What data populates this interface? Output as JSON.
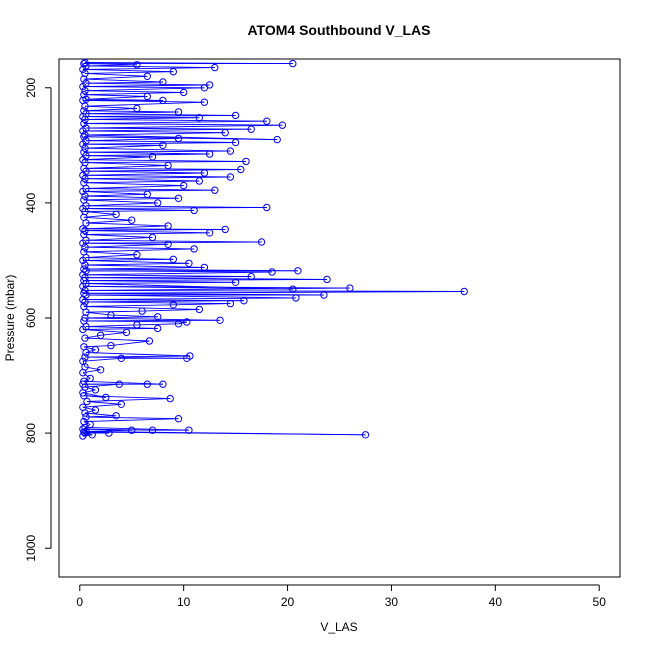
{
  "chart_data": {
    "type": "line",
    "title": "ATOM4 Southbound V_LAS",
    "xlabel": "V_LAS",
    "ylabel": "Pressure (mbar)",
    "xlim": [
      -2,
      52
    ],
    "ylim": [
      1050,
      150
    ],
    "y_reversed": true,
    "xticks": [
      0,
      10,
      20,
      30,
      40,
      50
    ],
    "yticks": [
      200,
      400,
      600,
      800,
      1000
    ],
    "grid": false,
    "series": [
      {
        "marker": "open-circle",
        "color": "#0000ff",
        "points": [
          [
            0.3,
            805
          ],
          [
            1.2,
            803
          ],
          [
            0.5,
            800
          ],
          [
            2.8,
            800
          ],
          [
            0.4,
            798
          ],
          [
            27.5,
            803
          ],
          [
            0.6,
            797
          ],
          [
            5.0,
            795
          ],
          [
            0.3,
            793
          ],
          [
            7.0,
            795
          ],
          [
            10.5,
            795
          ],
          [
            0.5,
            790
          ],
          [
            1.0,
            785
          ],
          [
            0.4,
            780
          ],
          [
            9.5,
            775
          ],
          [
            0.6,
            772
          ],
          [
            3.5,
            770
          ],
          [
            0.5,
            765
          ],
          [
            1.5,
            760
          ],
          [
            0.3,
            755
          ],
          [
            4.0,
            750
          ],
          [
            0.7,
            745
          ],
          [
            8.7,
            740
          ],
          [
            0.4,
            735
          ],
          [
            2.5,
            738
          ],
          [
            0.3,
            730
          ],
          [
            1.5,
            725
          ],
          [
            0.5,
            720
          ],
          [
            3.8,
            715
          ],
          [
            0.3,
            715
          ],
          [
            6.5,
            715
          ],
          [
            8.0,
            715
          ],
          [
            0.4,
            710
          ],
          [
            1.0,
            705
          ],
          [
            0.3,
            695
          ],
          [
            2.0,
            690
          ],
          [
            0.5,
            685
          ],
          [
            0.3,
            675
          ],
          [
            4.0,
            670
          ],
          [
            10.3,
            670
          ],
          [
            0.5,
            668
          ],
          [
            10.6,
            666
          ],
          [
            0.6,
            660
          ],
          [
            1.5,
            655
          ],
          [
            0.4,
            650
          ],
          [
            3.0,
            648
          ],
          [
            6.7,
            640
          ],
          [
            0.5,
            635
          ],
          [
            2.0,
            630
          ],
          [
            4.5,
            625
          ],
          [
            0.3,
            620
          ],
          [
            7.5,
            618
          ],
          [
            0.6,
            615
          ],
          [
            5.5,
            612
          ],
          [
            9.5,
            610
          ],
          [
            10.3,
            607
          ],
          [
            0.4,
            605
          ],
          [
            13.5,
            604
          ],
          [
            0.5,
            600
          ],
          [
            7.5,
            598
          ],
          [
            3.0,
            595
          ],
          [
            0.6,
            590
          ],
          [
            6.0,
            588
          ],
          [
            11.5,
            585
          ],
          [
            0.4,
            580
          ],
          [
            9.0,
            577
          ],
          [
            14.5,
            575
          ],
          [
            0.5,
            572
          ],
          [
            15.8,
            570
          ],
          [
            0.3,
            568
          ],
          [
            20.8,
            565
          ],
          [
            0.6,
            560
          ],
          [
            23.5,
            560
          ],
          [
            0.4,
            557
          ],
          [
            37.0,
            554
          ],
          [
            0.5,
            552
          ],
          [
            26.0,
            548
          ],
          [
            0.3,
            545
          ],
          [
            20.5,
            550
          ],
          [
            0.6,
            540
          ],
          [
            15.0,
            538
          ],
          [
            0.4,
            535
          ],
          [
            23.8,
            533
          ],
          [
            0.5,
            530
          ],
          [
            16.5,
            528
          ],
          [
            0.3,
            525
          ],
          [
            18.5,
            520
          ],
          [
            0.6,
            518
          ],
          [
            21.0,
            518
          ],
          [
            0.4,
            515
          ],
          [
            12.0,
            512
          ],
          [
            0.5,
            508
          ],
          [
            10.5,
            505
          ],
          [
            0.3,
            500
          ],
          [
            9.0,
            498
          ],
          [
            0.6,
            495
          ],
          [
            5.5,
            490
          ],
          [
            0.4,
            485
          ],
          [
            11.0,
            480
          ],
          [
            0.5,
            477
          ],
          [
            8.5,
            472
          ],
          [
            0.3,
            470
          ],
          [
            17.5,
            468
          ],
          [
            0.6,
            465
          ],
          [
            7.0,
            460
          ],
          [
            0.4,
            455
          ],
          [
            12.5,
            452
          ],
          [
            0.5,
            448
          ],
          [
            14.0,
            446
          ],
          [
            0.3,
            445
          ],
          [
            8.5,
            440
          ],
          [
            0.6,
            435
          ],
          [
            5.0,
            430
          ],
          [
            0.4,
            425
          ],
          [
            3.5,
            420
          ],
          [
            0.5,
            415
          ],
          [
            11.0,
            413
          ],
          [
            0.3,
            410
          ],
          [
            18.0,
            408
          ],
          [
            0.6,
            405
          ],
          [
            7.5,
            400
          ],
          [
            0.4,
            395
          ],
          [
            9.5,
            392
          ],
          [
            0.5,
            388
          ],
          [
            6.5,
            385
          ],
          [
            0.3,
            380
          ],
          [
            13.0,
            378
          ],
          [
            0.6,
            375
          ],
          [
            10.0,
            370
          ],
          [
            0.4,
            365
          ],
          [
            11.5,
            362
          ],
          [
            0.5,
            358
          ],
          [
            14.5,
            355
          ],
          [
            0.3,
            352
          ],
          [
            12.0,
            348
          ],
          [
            0.6,
            345
          ],
          [
            15.5,
            342
          ],
          [
            0.4,
            340
          ],
          [
            8.5,
            335
          ],
          [
            0.5,
            330
          ],
          [
            16.0,
            328
          ],
          [
            0.3,
            325
          ],
          [
            7.0,
            320
          ],
          [
            0.6,
            318
          ],
          [
            12.5,
            315
          ],
          [
            0.4,
            312
          ],
          [
            14.5,
            310
          ],
          [
            0.5,
            305
          ],
          [
            8.0,
            300
          ],
          [
            0.3,
            298
          ],
          [
            15.0,
            295
          ],
          [
            0.6,
            292
          ],
          [
            9.5,
            288
          ],
          [
            0.4,
            285
          ],
          [
            19.0,
            290
          ],
          [
            0.5,
            282
          ],
          [
            14.0,
            278
          ],
          [
            0.3,
            275
          ],
          [
            16.5,
            272
          ],
          [
            0.6,
            270
          ],
          [
            19.5,
            265
          ],
          [
            0.4,
            262
          ],
          [
            18.0,
            258
          ],
          [
            0.5,
            255
          ],
          [
            11.5,
            252
          ],
          [
            0.3,
            250
          ],
          [
            15.0,
            248
          ],
          [
            0.6,
            245
          ],
          [
            9.5,
            242
          ],
          [
            0.4,
            240
          ],
          [
            5.5,
            236
          ],
          [
            0.5,
            232
          ],
          [
            12.0,
            225
          ],
          [
            0.3,
            222
          ],
          [
            8.0,
            222
          ],
          [
            0.6,
            220
          ],
          [
            6.5,
            215
          ],
          [
            0.4,
            212
          ],
          [
            10.0,
            208
          ],
          [
            0.5,
            205
          ],
          [
            12.0,
            200
          ],
          [
            0.3,
            198
          ],
          [
            12.5,
            195
          ],
          [
            0.6,
            192
          ],
          [
            8.0,
            190
          ],
          [
            0.4,
            185
          ],
          [
            6.5,
            180
          ],
          [
            0.5,
            175
          ],
          [
            9.0,
            172
          ],
          [
            0.3,
            168
          ],
          [
            13.0,
            165
          ],
          [
            0.6,
            162
          ],
          [
            5.5,
            160
          ],
          [
            0.4,
            158
          ],
          [
            20.5,
            158
          ],
          [
            0.5,
            156
          ]
        ]
      }
    ]
  }
}
